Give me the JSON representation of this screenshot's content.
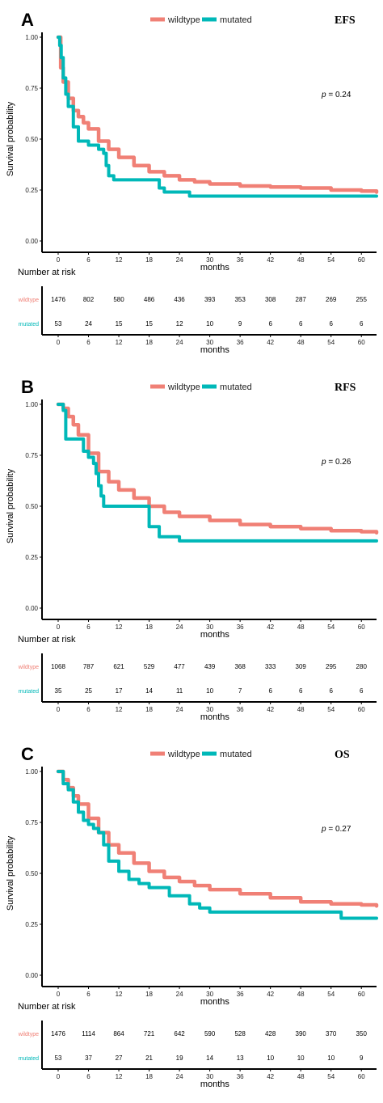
{
  "colors": {
    "wildtype": "#F08076",
    "mutated": "#00B8B8",
    "axis": "#000000"
  },
  "legend": {
    "wildtype": "wildtype",
    "mutated": "mutated"
  },
  "chart_data": [
    {
      "type": "line",
      "panel": "A",
      "endpoint": "EFS",
      "xlabel": "months",
      "ylabel": "Survival probability",
      "pvalue_label": "p",
      "pvalue": "= 0.24",
      "xlim": [
        0,
        63
      ],
      "ylim": [
        0,
        1
      ],
      "x_ticks": [
        0,
        6,
        12,
        18,
        24,
        30,
        36,
        42,
        48,
        54,
        60
      ],
      "y_ticks": [
        "0.00",
        "0.25",
        "0.50",
        "0.75",
        "1.00"
      ],
      "series": [
        {
          "name": "wildtype",
          "x": [
            0,
            0.5,
            1,
            2,
            3,
            4,
            5,
            6,
            8,
            10,
            12,
            15,
            18,
            21,
            24,
            27,
            30,
            36,
            42,
            48,
            54,
            60,
            63
          ],
          "y": [
            1.0,
            0.85,
            0.78,
            0.7,
            0.64,
            0.61,
            0.58,
            0.55,
            0.49,
            0.45,
            0.41,
            0.37,
            0.34,
            0.32,
            0.3,
            0.29,
            0.28,
            0.27,
            0.265,
            0.26,
            0.25,
            0.245,
            0.24
          ]
        },
        {
          "name": "mutated",
          "x": [
            0,
            0.3,
            0.6,
            1,
            1.5,
            2,
            3,
            4,
            6,
            8,
            9,
            9.5,
            10,
            11,
            12,
            20,
            21,
            26,
            63
          ],
          "y": [
            1.0,
            0.96,
            0.9,
            0.8,
            0.72,
            0.66,
            0.56,
            0.49,
            0.47,
            0.45,
            0.43,
            0.37,
            0.32,
            0.3,
            0.3,
            0.26,
            0.24,
            0.22,
            0.22
          ]
        }
      ],
      "risk_table": {
        "title": "Number at risk",
        "times": [
          0,
          6,
          12,
          18,
          24,
          30,
          36,
          42,
          48,
          54,
          60
        ],
        "rows": [
          {
            "label": "wildtype",
            "values": [
              1476,
              802,
              580,
              486,
              436,
              393,
              353,
              308,
              287,
              269,
              255
            ]
          },
          {
            "label": "mutated",
            "values": [
              53,
              24,
              15,
              15,
              12,
              10,
              9,
              6,
              6,
              6,
              6
            ]
          }
        ]
      }
    },
    {
      "type": "line",
      "panel": "B",
      "endpoint": "RFS",
      "xlabel": "months",
      "ylabel": "Survival probability",
      "pvalue_label": "p",
      "pvalue": "= 0.26",
      "xlim": [
        0,
        63
      ],
      "ylim": [
        0,
        1
      ],
      "x_ticks": [
        0,
        6,
        12,
        18,
        24,
        30,
        36,
        42,
        48,
        54,
        60
      ],
      "y_ticks": [
        "0.00",
        "0.25",
        "0.50",
        "0.75",
        "1.00"
      ],
      "series": [
        {
          "name": "wildtype",
          "x": [
            0,
            1,
            2,
            3,
            4,
            6,
            8,
            10,
            12,
            15,
            18,
            21,
            24,
            30,
            36,
            42,
            48,
            54,
            60,
            63
          ],
          "y": [
            1.0,
            0.98,
            0.94,
            0.9,
            0.85,
            0.76,
            0.67,
            0.62,
            0.58,
            0.54,
            0.5,
            0.47,
            0.45,
            0.43,
            0.41,
            0.4,
            0.39,
            0.38,
            0.375,
            0.37
          ]
        },
        {
          "name": "mutated",
          "x": [
            0,
            1,
            1.5,
            3,
            4,
            5,
            6,
            7,
            7.5,
            8,
            8.5,
            9,
            10,
            12,
            14,
            18,
            20,
            23,
            24,
            63
          ],
          "y": [
            1.0,
            0.97,
            0.83,
            0.83,
            0.83,
            0.77,
            0.74,
            0.71,
            0.66,
            0.6,
            0.55,
            0.5,
            0.5,
            0.5,
            0.5,
            0.4,
            0.35,
            0.35,
            0.33,
            0.33
          ]
        }
      ],
      "risk_table": {
        "title": "Number at risk",
        "times": [
          0,
          6,
          12,
          18,
          24,
          30,
          36,
          42,
          48,
          54,
          60
        ],
        "rows": [
          {
            "label": "wildtype",
            "values": [
              1068,
              787,
              621,
              529,
              477,
              439,
              368,
              333,
              309,
              295,
              280
            ]
          },
          {
            "label": "mutated",
            "values": [
              35,
              25,
              17,
              14,
              11,
              10,
              7,
              6,
              6,
              6,
              6
            ]
          }
        ]
      }
    },
    {
      "type": "line",
      "panel": "C",
      "endpoint": "OS",
      "xlabel": "months",
      "ylabel": "Survival probability",
      "pvalue_label": "p",
      "pvalue": "= 0.27",
      "xlim": [
        0,
        63
      ],
      "ylim": [
        0,
        1
      ],
      "x_ticks": [
        0,
        6,
        12,
        18,
        24,
        30,
        36,
        42,
        48,
        54,
        60
      ],
      "y_ticks": [
        "0.00",
        "0.25",
        "0.50",
        "0.75",
        "1.00"
      ],
      "series": [
        {
          "name": "wildtype",
          "x": [
            0,
            1,
            2,
            3,
            4,
            6,
            8,
            10,
            12,
            15,
            18,
            21,
            24,
            27,
            30,
            36,
            42,
            48,
            54,
            60,
            63
          ],
          "y": [
            1.0,
            0.96,
            0.92,
            0.88,
            0.84,
            0.77,
            0.7,
            0.64,
            0.6,
            0.55,
            0.51,
            0.48,
            0.46,
            0.44,
            0.42,
            0.4,
            0.38,
            0.36,
            0.35,
            0.345,
            0.34
          ]
        },
        {
          "name": "mutated",
          "x": [
            0,
            1,
            2,
            3,
            4,
            5,
            6,
            7,
            8,
            9,
            10,
            12,
            14,
            16,
            18,
            22,
            26,
            28,
            30,
            56,
            63
          ],
          "y": [
            1.0,
            0.94,
            0.91,
            0.85,
            0.8,
            0.76,
            0.74,
            0.72,
            0.7,
            0.64,
            0.56,
            0.51,
            0.47,
            0.45,
            0.43,
            0.39,
            0.35,
            0.33,
            0.31,
            0.28,
            0.28
          ]
        }
      ],
      "risk_table": {
        "title": "Number at risk",
        "times": [
          0,
          6,
          12,
          18,
          24,
          30,
          36,
          42,
          48,
          54,
          60
        ],
        "rows": [
          {
            "label": "wildtype",
            "values": [
              1476,
              1114,
              864,
              721,
              642,
              590,
              528,
              428,
              390,
              370,
              350
            ]
          },
          {
            "label": "mutated",
            "values": [
              53,
              37,
              27,
              21,
              19,
              14,
              13,
              10,
              10,
              10,
              9
            ]
          }
        ]
      }
    }
  ]
}
